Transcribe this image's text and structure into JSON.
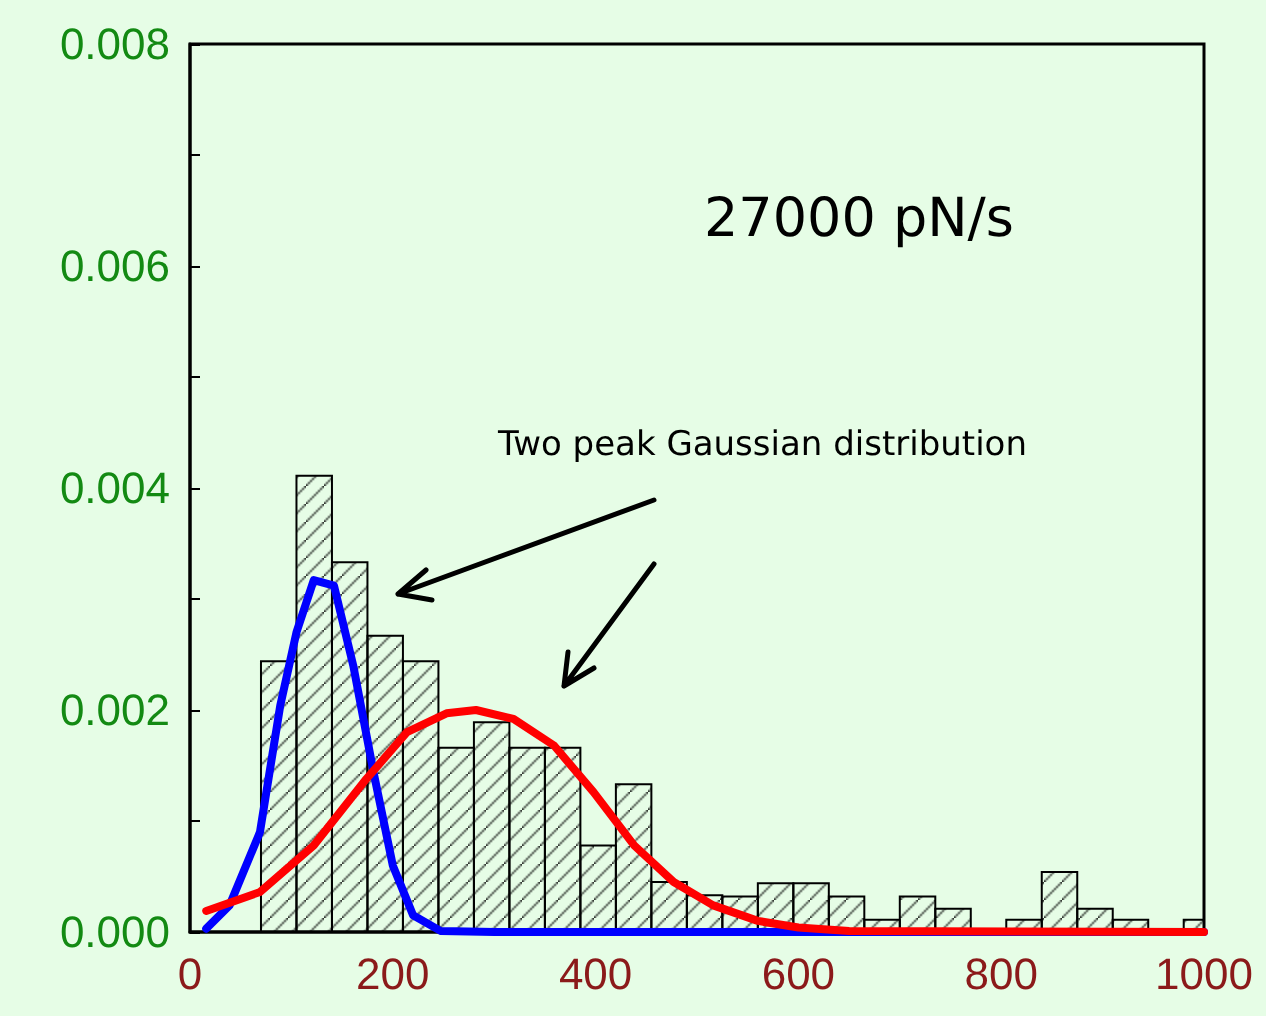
{
  "chart_data": {
    "type": "histogram",
    "bins": [
      70,
      105,
      140,
      175,
      210,
      245,
      280,
      315,
      350,
      385,
      420,
      455,
      490,
      525,
      560,
      595,
      630,
      665,
      700,
      735,
      770,
      805,
      840,
      875,
      910,
      945,
      980,
      1000
    ],
    "values": [
      0.00244,
      0.00411,
      0.00333,
      0.00267,
      0.00244,
      0.00166,
      0.00189,
      0.00166,
      0.00166,
      0.00078,
      0.00133,
      0.00045,
      0.00033,
      0.00032,
      0.00044,
      0.00044,
      0.00032,
      0.00011,
      0.00032,
      0.00021,
      0,
      0.00011,
      0.00054,
      0.00021,
      0.00011,
      0,
      0.00011
    ],
    "color": "#000000",
    "series": [
      {
        "type": "line",
        "color": "#0000ff",
        "x": [
          16,
          39,
          69,
          89,
          105,
          122,
          142,
          161,
          181,
          200,
          220,
          247,
          300,
          1000
        ],
        "values": [
          3e-05,
          0.00024,
          0.0009,
          0.00204,
          0.0027,
          0.00317,
          0.00312,
          0.0024,
          0.00144,
          0.0006,
          0.00015,
          1e-05,
          0,
          0
        ]
      },
      {
        "type": "line",
        "color": "#ff0000",
        "x": [
          16,
          69,
          122,
          174,
          214,
          253,
          282,
          319,
          359,
          398,
          438,
          477,
          516,
          560,
          600,
          650,
          1000
        ],
        "values": [
          0.00019,
          0.00036,
          0.00078,
          0.00138,
          0.0018,
          0.00197,
          0.002,
          0.00192,
          0.00168,
          0.00126,
          0.00078,
          0.00045,
          0.00024,
          0.0001,
          4e-05,
          1e-05,
          0
        ]
      }
    ],
    "marker": "none",
    "line_style": "solid",
    "xlim": [
      0,
      1000
    ],
    "xticks": [
      0,
      200,
      400,
      600,
      800,
      1000
    ],
    "ylim": [
      0,
      0.008
    ],
    "yticks": [
      {
        "value": 0,
        "label": "0.000"
      },
      {
        "value": 0.001,
        "label": null
      },
      {
        "value": 0.002,
        "label": "0.002"
      },
      {
        "value": 0.003,
        "label": null
      },
      {
        "value": 0.004,
        "label": "0.004"
      },
      {
        "value": 0.005,
        "label": null
      },
      {
        "value": 0.006,
        "label": "0.006"
      },
      {
        "value": 0.007,
        "label": null
      },
      {
        "value": 0.008,
        "label": "0.008"
      }
    ],
    "annotations": [
      "27000 pN/s",
      "Two peak Gaussian distribution"
    ],
    "grid": false
  }
}
